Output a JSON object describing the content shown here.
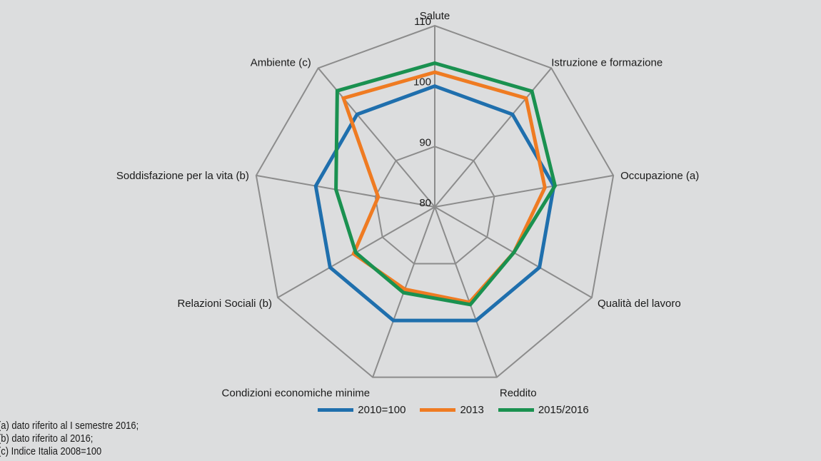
{
  "chart_data": {
    "type": "radar",
    "axes": [
      "Salute",
      "Istruzione e formazione",
      "Occupazione (a)",
      "Qualità del lavoro",
      "Reddito",
      "Condizioni economiche minime",
      "Relazioni Sociali (b)",
      "Soddisfazione per la vita (b)",
      "Ambiente (c)"
    ],
    "r_range": [
      80,
      110
    ],
    "ticks": [
      "80",
      "90",
      "100",
      "110"
    ],
    "series": [
      {
        "name": "2010=100",
        "color": "#1f6fad",
        "values": [
          100,
          100,
          100,
          100,
          100,
          100,
          100,
          100,
          100
        ]
      },
      {
        "name": "2013",
        "color": "#ef7b22",
        "values": [
          102.3,
          103.5,
          98.5,
          95.1,
          96.8,
          94.5,
          95.5,
          89.5,
          103.5
        ]
      },
      {
        "name": "2015/2016",
        "color": "#1a9150",
        "values": [
          103.8,
          105,
          100.2,
          95.1,
          97.2,
          95.1,
          95.1,
          96.6,
          105.1
        ]
      }
    ],
    "grid": true,
    "legend_position": "bottom"
  },
  "notes": [
    "(a) dato riferito al I semestre 2016;",
    "(b) dato riferito al 2016;",
    "(c) Indice Italia 2008=100"
  ]
}
